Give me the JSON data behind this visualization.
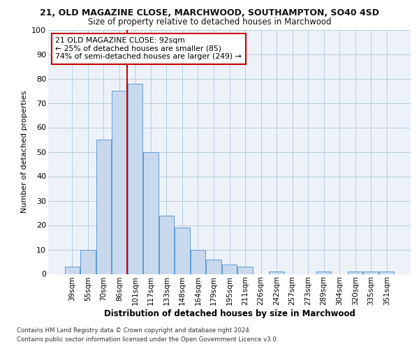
{
  "title1": "21, OLD MAGAZINE CLOSE, MARCHWOOD, SOUTHAMPTON, SO40 4SD",
  "title2": "Size of property relative to detached houses in Marchwood",
  "xlabel": "Distribution of detached houses by size in Marchwood",
  "ylabel": "Number of detached properties",
  "bar_labels": [
    "39sqm",
    "55sqm",
    "70sqm",
    "86sqm",
    "101sqm",
    "117sqm",
    "133sqm",
    "148sqm",
    "164sqm",
    "179sqm",
    "195sqm",
    "211sqm",
    "226sqm",
    "242sqm",
    "257sqm",
    "273sqm",
    "289sqm",
    "304sqm",
    "320sqm",
    "335sqm",
    "351sqm"
  ],
  "bar_values": [
    3,
    10,
    55,
    75,
    78,
    50,
    24,
    19,
    10,
    6,
    4,
    3,
    0,
    1,
    0,
    0,
    1,
    0,
    1,
    1,
    1
  ],
  "bar_color": "#c9d9ed",
  "bar_edge_color": "#5b9bd5",
  "vline_color": "#cc0000",
  "vline_pos": 3.5,
  "annotation_text": "21 OLD MAGAZINE CLOSE: 92sqm\n← 25% of detached houses are smaller (85)\n74% of semi-detached houses are larger (249) →",
  "annotation_box_color": "#ffffff",
  "annotation_box_edge": "#cc0000",
  "footer1": "Contains HM Land Registry data © Crown copyright and database right 2024.",
  "footer2": "Contains public sector information licensed under the Open Government Licence v3.0.",
  "ylim": [
    0,
    100
  ],
  "background_color": "#edf2f9",
  "grid_color": "#b0c4de"
}
